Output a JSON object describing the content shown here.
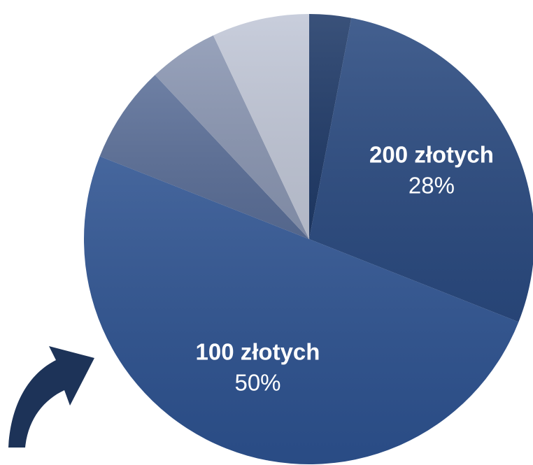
{
  "chart_data": {
    "type": "pie",
    "categories": [
      null,
      "200 złotych",
      "100 złotych",
      null,
      null,
      null
    ],
    "values": [
      3,
      28,
      50,
      7,
      5,
      7
    ],
    "value_labels": [
      null,
      "28%",
      "50%",
      null,
      null,
      null
    ],
    "colors": [
      "#1f3a68",
      "#2a4a80",
      "#2d5290",
      "#5b6f98",
      "#8a96b2",
      "#c1c7d7"
    ]
  }
}
